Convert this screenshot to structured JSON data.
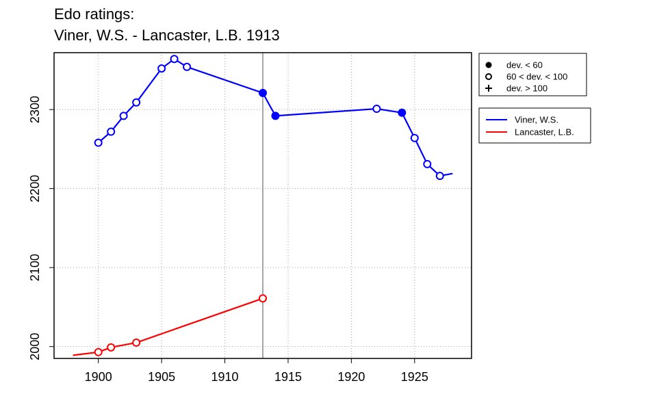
{
  "title_line1": "Edo ratings:",
  "title_line2": "Viner, W.S. - Lancaster, L.B. 1913",
  "chart_data": {
    "type": "line",
    "title": "Edo ratings: Viner, W.S. - Lancaster, L.B. 1913",
    "xlim": [
      1896.5,
      1929.5
    ],
    "ylim": [
      1985,
      2372
    ],
    "x_ticks": [
      1900,
      1905,
      1910,
      1915,
      1920,
      1925
    ],
    "y_ticks": [
      2000,
      2100,
      2200,
      2300
    ],
    "grid": "dotted",
    "reference_line_x": 1913,
    "series": [
      {
        "name": "Viner, W.S.",
        "color": "#0000ff",
        "line": [
          [
            1900,
            2258
          ],
          [
            1901,
            2272
          ],
          [
            1902,
            2292
          ],
          [
            1903,
            2309
          ],
          [
            1905,
            2352
          ],
          [
            1906,
            2364
          ],
          [
            1907,
            2354
          ],
          [
            1913,
            2321
          ],
          [
            1914,
            2292
          ],
          [
            1922,
            2301
          ],
          [
            1924,
            2296
          ],
          [
            1925,
            2264
          ],
          [
            1926,
            2231
          ],
          [
            1927,
            2216
          ],
          [
            1928,
            2219
          ]
        ],
        "points": [
          {
            "x": 1900,
            "y": 2258,
            "marker": "open"
          },
          {
            "x": 1901,
            "y": 2272,
            "marker": "open"
          },
          {
            "x": 1902,
            "y": 2292,
            "marker": "open"
          },
          {
            "x": 1903,
            "y": 2309,
            "marker": "open"
          },
          {
            "x": 1905,
            "y": 2352,
            "marker": "open"
          },
          {
            "x": 1906,
            "y": 2364,
            "marker": "open"
          },
          {
            "x": 1907,
            "y": 2354,
            "marker": "open"
          },
          {
            "x": 1913,
            "y": 2321,
            "marker": "filled"
          },
          {
            "x": 1914,
            "y": 2292,
            "marker": "filled"
          },
          {
            "x": 1922,
            "y": 2301,
            "marker": "open"
          },
          {
            "x": 1924,
            "y": 2296,
            "marker": "filled"
          },
          {
            "x": 1925,
            "y": 2264,
            "marker": "open"
          },
          {
            "x": 1926,
            "y": 2231,
            "marker": "open"
          },
          {
            "x": 1927,
            "y": 2216,
            "marker": "open"
          }
        ]
      },
      {
        "name": "Lancaster, L.B.",
        "color": "#ff0000",
        "line": [
          [
            1898,
            1989
          ],
          [
            1900,
            1993
          ],
          [
            1901,
            1999
          ],
          [
            1903,
            2005
          ],
          [
            1913,
            2061
          ]
        ],
        "points": [
          {
            "x": 1900,
            "y": 1993,
            "marker": "open"
          },
          {
            "x": 1901,
            "y": 1999,
            "marker": "open"
          },
          {
            "x": 1903,
            "y": 2005,
            "marker": "open"
          },
          {
            "x": 1913,
            "y": 2061,
            "marker": "open"
          }
        ]
      }
    ],
    "legend_markers": [
      {
        "symbol": "filled-circle",
        "label": "dev. < 60"
      },
      {
        "symbol": "open-circle",
        "label": "60 < dev. < 100"
      },
      {
        "symbol": "plus",
        "label": "dev. > 100"
      }
    ],
    "legend_series": [
      {
        "label": "Viner, W.S.",
        "color": "#0000ff"
      },
      {
        "label": "Lancaster, L.B.",
        "color": "#ff0000"
      }
    ],
    "legend_placement": "right, outside plot, top"
  }
}
